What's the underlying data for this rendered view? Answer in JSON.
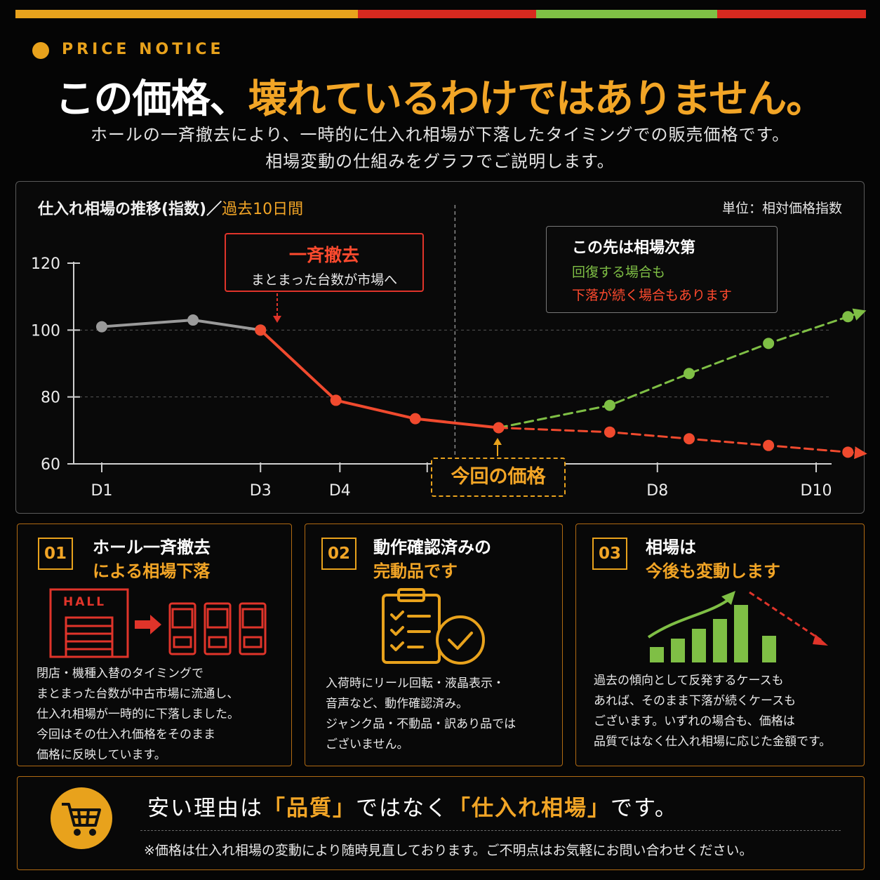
{
  "colors": {
    "orange": "#e8a21c",
    "red": "#e0342a",
    "green": "#7fbf45",
    "gray": "#9a9a9a"
  },
  "header": {
    "label": "PRICE NOTICE",
    "headline_white": "この価格、",
    "headline_orange": "壊れているわけではありません。",
    "sub1": "ホールの一斉撤去により、一時的に仕入れ相場が下落したタイミングでの販売価格です。",
    "sub2": "相場変動の仕組みをグラフでご説明します。"
  },
  "chart": {
    "title_main": "仕入れ相場の推移(指数)／",
    "title_range": "過去10日間",
    "unit": "単位：相対価格指数",
    "callout_removal_title": "一斉撤去",
    "callout_removal_text": "まとまった台数が市場へ",
    "callout_future_title": "この先は相場次第",
    "callout_future_up": "回復する場合も",
    "callout_future_down": "下落が続く場合もあります",
    "current_price_label": "今回の価格"
  },
  "chart_data": {
    "type": "line",
    "ylim": [
      60,
      120
    ],
    "yticks": [
      60,
      80,
      100,
      120
    ],
    "xlim": [
      1,
      10
    ],
    "xticks": [
      {
        "x": 1,
        "label": "D1"
      },
      {
        "x": 3,
        "label": "D3"
      },
      {
        "x": 4,
        "label": "D4"
      },
      {
        "x": 5.1,
        "label": ""
      },
      {
        "x": 8,
        "label": "D8"
      },
      {
        "x": 10,
        "label": "D10"
      }
    ],
    "divider_x": 5.45,
    "series": [
      {
        "key": "past",
        "color": "#9a9a9a",
        "style": "solid",
        "points": [
          [
            1,
            101
          ],
          [
            2.15,
            103
          ],
          [
            3,
            100
          ]
        ]
      },
      {
        "key": "drop",
        "color": "#f04a2e",
        "style": "solid",
        "points": [
          [
            3,
            100
          ],
          [
            3.95,
            79
          ],
          [
            4.95,
            73.5
          ],
          [
            6,
            70.8
          ]
        ]
      },
      {
        "key": "recovery",
        "color": "#7fbf45",
        "style": "dashed",
        "points": [
          [
            6,
            70.8
          ],
          [
            7.4,
            77.5
          ],
          [
            8.4,
            87
          ],
          [
            9.4,
            96
          ],
          [
            10.4,
            104
          ]
        ]
      },
      {
        "key": "decline",
        "color": "#f04a2e",
        "style": "dashed",
        "points": [
          [
            6,
            70.8
          ],
          [
            7.4,
            69.5
          ],
          [
            8.4,
            67.5
          ],
          [
            9.4,
            65.5
          ],
          [
            10.4,
            63.5
          ]
        ]
      }
    ]
  },
  "cards": [
    {
      "num": "01",
      "title1": "ホール一斉撤去",
      "title2": "による相場下落",
      "icon_label": "HALL",
      "body": [
        "閉店・機種入替のタイミングで",
        "まとまった台数が中古市場に流通し、",
        "仕入れ相場が一時的に下落しました。",
        "今回はその仕入れ価格をそのまま",
        "価格に反映しています。"
      ]
    },
    {
      "num": "02",
      "title1": "動作確認済みの",
      "title2": "完動品です",
      "body": [
        "入荷時にリール回転・液晶表示・",
        "音声など、動作確認済み。",
        "ジャンク品・不動品・訳あり品では",
        "ございません。"
      ]
    },
    {
      "num": "03",
      "title1": "相場は",
      "title2": "今後も変動します",
      "body": [
        "過去の傾向として反発するケースも",
        "あれば、そのまま下落が続くケースも",
        "ございます。いずれの場合も、価格は",
        "品質ではなく仕入れ相場に応じた金額です。"
      ]
    }
  ],
  "bottom": {
    "pre": "安い理由は",
    "q1": "「品質」",
    "mid": "ではなく",
    "q2": "「仕入れ相場」",
    "post": "です。",
    "note": "※価格は仕入れ相場の変動により随時見直しております。ご不明点はお気軽にお問い合わせください。"
  }
}
